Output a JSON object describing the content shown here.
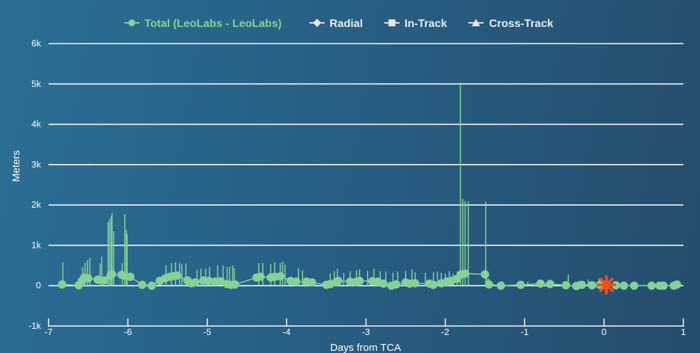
{
  "colors": {
    "series": "#86d197",
    "marker": "#ff4a12",
    "grid": "#ffffff",
    "legend_other": "#e6e6e6"
  },
  "chart_data": {
    "type": "line",
    "xlabel": "Days from TCA",
    "ylabel": "Meters",
    "xlim": [
      -7,
      1
    ],
    "ylim": [
      -1000,
      6000
    ],
    "x_ticks": [
      -7,
      -6,
      -5,
      -4,
      -3,
      -2,
      -1,
      0,
      1
    ],
    "x_tick_labels": [
      "-7",
      "-6",
      "-5",
      "-4",
      "-3",
      "-2",
      "-1",
      "0",
      "1"
    ],
    "y_ticks": [
      -1000,
      0,
      1000,
      2000,
      3000,
      4000,
      5000,
      6000
    ],
    "y_tick_labels": [
      "-1k",
      "0",
      "1k",
      "2k",
      "3k",
      "4k",
      "5k",
      "6k"
    ],
    "grid": true,
    "legend_position": "top",
    "legend": [
      {
        "label": "Total (LeoLabs - LeoLabs)",
        "icon": "circle-icon",
        "active": true
      },
      {
        "label": "Radial",
        "icon": "diamond-icon",
        "active": false
      },
      {
        "label": "In-Track",
        "icon": "square-icon",
        "active": false
      },
      {
        "label": "Cross-Track",
        "icon": "triangle-icon",
        "active": false
      }
    ],
    "series": [
      {
        "name": "Total (LeoLabs - LeoLabs)",
        "points": [
          [
            -6.83,
            30
          ],
          [
            -6.62,
            10
          ],
          [
            -6.58,
            120
          ],
          [
            -6.55,
            200
          ],
          [
            -6.5,
            180
          ],
          [
            -6.38,
            150
          ],
          [
            -6.3,
            130
          ],
          [
            -6.22,
            250
          ],
          [
            -6.2,
            280
          ],
          [
            -6.08,
            270
          ],
          [
            -6.05,
            250
          ],
          [
            -5.97,
            220
          ],
          [
            -5.82,
            20
          ],
          [
            -5.7,
            0
          ],
          [
            -5.6,
            120
          ],
          [
            -5.53,
            180
          ],
          [
            -5.47,
            220
          ],
          [
            -5.42,
            240
          ],
          [
            -5.38,
            250
          ],
          [
            -5.25,
            130
          ],
          [
            -5.2,
            60
          ],
          [
            -5.15,
            80
          ],
          [
            -5.05,
            130
          ],
          [
            -4.98,
            120
          ],
          [
            -4.9,
            100
          ],
          [
            -4.83,
            110
          ],
          [
            -4.75,
            40
          ],
          [
            -4.7,
            20
          ],
          [
            -4.65,
            30
          ],
          [
            -4.38,
            200
          ],
          [
            -4.33,
            220
          ],
          [
            -4.2,
            200
          ],
          [
            -4.15,
            220
          ],
          [
            -4.08,
            230
          ],
          [
            -3.95,
            120
          ],
          [
            -3.88,
            100
          ],
          [
            -3.75,
            100
          ],
          [
            -3.68,
            80
          ],
          [
            -3.5,
            20
          ],
          [
            -3.45,
            40
          ],
          [
            -3.38,
            80
          ],
          [
            -3.35,
            120
          ],
          [
            -3.2,
            100
          ],
          [
            -3.13,
            90
          ],
          [
            -3.08,
            120
          ],
          [
            -2.92,
            110
          ],
          [
            -2.85,
            100
          ],
          [
            -2.78,
            50
          ],
          [
            -2.68,
            0
          ],
          [
            -2.62,
            30
          ],
          [
            -2.5,
            80
          ],
          [
            -2.45,
            50
          ],
          [
            -2.38,
            60
          ],
          [
            -2.2,
            50
          ],
          [
            -2.15,
            20
          ],
          [
            -2.05,
            60
          ],
          [
            -1.98,
            100
          ],
          [
            -1.92,
            120
          ],
          [
            -1.85,
            170
          ],
          [
            -1.8,
            280
          ],
          [
            -1.75,
            300
          ],
          [
            -1.5,
            280
          ],
          [
            -1.45,
            30
          ],
          [
            -1.3,
            0
          ],
          [
            -1.05,
            20
          ],
          [
            -0.8,
            50
          ],
          [
            -0.68,
            40
          ],
          [
            -0.48,
            10
          ],
          [
            -0.35,
            -10
          ],
          [
            -0.28,
            20
          ],
          [
            -0.15,
            10
          ],
          [
            -0.05,
            20
          ],
          [
            0.02,
            20
          ],
          [
            0.15,
            10
          ],
          [
            0.25,
            0
          ],
          [
            0.38,
            0
          ],
          [
            0.6,
            0
          ],
          [
            0.7,
            0
          ],
          [
            0.75,
            0
          ],
          [
            0.88,
            0
          ],
          [
            0.92,
            30
          ]
        ],
        "spikes": [
          [
            -6.82,
            570
          ],
          [
            -6.57,
            460
          ],
          [
            -6.54,
            560
          ],
          [
            -6.51,
            630
          ],
          [
            -6.48,
            690
          ],
          [
            -6.35,
            550
          ],
          [
            -6.33,
            720
          ],
          [
            -6.25,
            1580
          ],
          [
            -6.23,
            1650
          ],
          [
            -6.21,
            1720
          ],
          [
            -6.2,
            1800
          ],
          [
            -6.18,
            1350
          ],
          [
            -6.07,
            560
          ],
          [
            -6.04,
            1780
          ],
          [
            -6.02,
            1380
          ],
          [
            -6.01,
            1280
          ],
          [
            -5.52,
            500
          ],
          [
            -5.45,
            560
          ],
          [
            -5.4,
            580
          ],
          [
            -5.35,
            560
          ],
          [
            -5.32,
            530
          ],
          [
            -5.27,
            550
          ],
          [
            -5.13,
            390
          ],
          [
            -5.08,
            420
          ],
          [
            -5.02,
            420
          ],
          [
            -4.97,
            470
          ],
          [
            -4.87,
            500
          ],
          [
            -4.8,
            500
          ],
          [
            -4.75,
            460
          ],
          [
            -4.72,
            470
          ],
          [
            -4.68,
            500
          ],
          [
            -4.66,
            430
          ],
          [
            -4.35,
            560
          ],
          [
            -4.3,
            560
          ],
          [
            -4.2,
            540
          ],
          [
            -4.15,
            570
          ],
          [
            -4.08,
            560
          ],
          [
            -4.05,
            600
          ],
          [
            -4.02,
            520
          ],
          [
            -3.85,
            430
          ],
          [
            -3.8,
            380
          ],
          [
            -3.45,
            300
          ],
          [
            -3.4,
            360
          ],
          [
            -3.36,
            420
          ],
          [
            -3.28,
            310
          ],
          [
            -3.2,
            360
          ],
          [
            -3.12,
            380
          ],
          [
            -3.08,
            400
          ],
          [
            -2.98,
            370
          ],
          [
            -2.9,
            420
          ],
          [
            -2.82,
            360
          ],
          [
            -2.75,
            350
          ],
          [
            -2.66,
            320
          ],
          [
            -2.6,
            350
          ],
          [
            -2.5,
            370
          ],
          [
            -2.42,
            400
          ],
          [
            -2.38,
            330
          ],
          [
            -2.25,
            320
          ],
          [
            -2.15,
            330
          ],
          [
            -2.1,
            350
          ],
          [
            -2.05,
            320
          ],
          [
            -2.0,
            300
          ],
          [
            -1.95,
            360
          ],
          [
            -1.9,
            300
          ],
          [
            -1.85,
            350
          ],
          [
            -1.81,
            5030
          ],
          [
            -1.78,
            2150
          ],
          [
            -1.75,
            2100
          ],
          [
            -1.71,
            2090
          ],
          [
            -1.49,
            2080
          ],
          [
            -1.45,
            180
          ],
          [
            -1.28,
            110
          ],
          [
            -1.03,
            120
          ],
          [
            -0.96,
            100
          ],
          [
            -0.45,
            280
          ],
          [
            -0.32,
            120
          ],
          [
            -0.2,
            150
          ],
          [
            -0.06,
            180
          ]
        ]
      }
    ],
    "annotations": [
      {
        "type": "star-marker",
        "x": 0.03,
        "y": 20
      }
    ]
  }
}
